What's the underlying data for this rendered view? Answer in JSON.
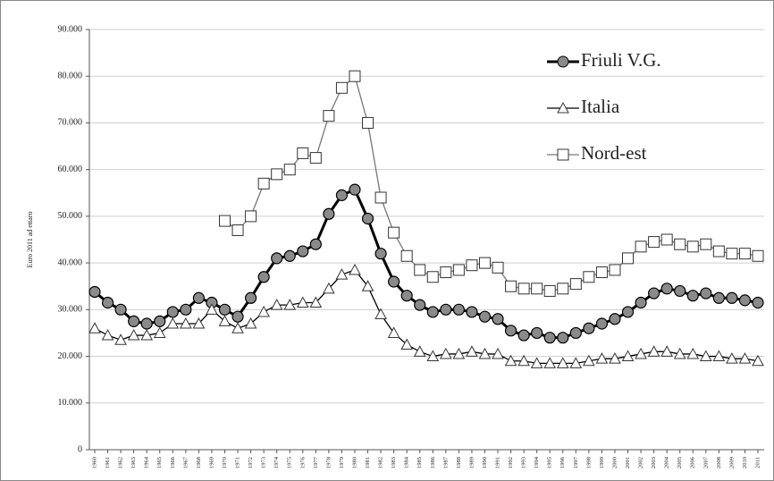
{
  "chart_data": {
    "type": "line",
    "y_label": "Euro 2011 ad ettaro",
    "categories": [
      "1960",
      "1961",
      "1962",
      "1963",
      "1964",
      "1965",
      "1966",
      "1967",
      "1968",
      "1969",
      "1970",
      "1971",
      "1972",
      "1973",
      "1974",
      "1975",
      "1976",
      "1977",
      "1978",
      "1979",
      "1980",
      "1981",
      "1982",
      "1983",
      "1984",
      "1985",
      "1986",
      "1987",
      "1988",
      "1989",
      "1990",
      "1991",
      "1992",
      "1993",
      "1994",
      "1995",
      "1996",
      "1997",
      "1998",
      "1999",
      "2000",
      "2001",
      "2002",
      "2003",
      "2004",
      "2005",
      "2006",
      "2007",
      "2008",
      "2009",
      "2010",
      "2011"
    ],
    "ylim": [
      0,
      90000
    ],
    "yticks": [
      0,
      {
        "value": 10000,
        "label": "10.000"
      },
      {
        "value": 20000,
        "label": "20.000"
      },
      {
        "value": 30000,
        "label": "30.000"
      },
      {
        "value": 40000,
        "label": "40.000"
      },
      {
        "value": 50000,
        "label": "50.000"
      },
      {
        "value": 60000,
        "label": "60.000"
      },
      {
        "value": 70000,
        "label": "70.000"
      },
      {
        "value": 80000,
        "label": "80.000"
      },
      {
        "value": 90000,
        "label": "90.000"
      }
    ],
    "grid": true,
    "legend": "upper right",
    "series": [
      {
        "name": "Friuli V.G.",
        "color": "#000000",
        "marker": "circle",
        "values": [
          33800,
          31500,
          30000,
          27500,
          27000,
          27500,
          29500,
          30000,
          32500,
          31500,
          30000,
          28500,
          32500,
          37000,
          41000,
          41500,
          42500,
          44000,
          50500,
          54500,
          55700,
          49500,
          42000,
          36000,
          33000,
          31000,
          29500,
          30000,
          30000,
          29500,
          28500,
          28000,
          25500,
          24500,
          25000,
          24000,
          24000,
          25000,
          26000,
          27000,
          28000,
          29500,
          31500,
          33500,
          34500,
          34000,
          33000,
          33500,
          32500,
          32500,
          32000,
          31500
        ]
      },
      {
        "name": "Italia",
        "color": "#000000",
        "marker": "triangle",
        "values": [
          26000,
          24500,
          23500,
          24500,
          24500,
          25000,
          27000,
          27000,
          27000,
          30000,
          27500,
          26000,
          27000,
          29500,
          31000,
          31000,
          31500,
          31500,
          34500,
          37500,
          38500,
          35000,
          29000,
          25000,
          22500,
          21000,
          20000,
          20500,
          20500,
          21000,
          20500,
          20500,
          19000,
          19000,
          18500,
          18500,
          18500,
          18500,
          19000,
          19500,
          19500,
          20000,
          20500,
          21000,
          21000,
          20500,
          20500,
          20000,
          20000,
          19500,
          19500,
          19000
        ]
      },
      {
        "name": "Nord-est",
        "color": "#777777",
        "marker": "square",
        "values": [
          null,
          null,
          null,
          null,
          null,
          null,
          null,
          null,
          null,
          null,
          49000,
          47000,
          50000,
          57000,
          59000,
          60000,
          63500,
          62500,
          71500,
          77500,
          80000,
          70000,
          54000,
          46500,
          41500,
          38500,
          37000,
          38000,
          38500,
          39500,
          40000,
          39000,
          35000,
          34500,
          34500,
          34000,
          34500,
          35500,
          37000,
          38000,
          38500,
          41000,
          43500,
          44500,
          45000,
          44000,
          43500,
          44000,
          42500,
          42000,
          42000,
          41500
        ]
      }
    ]
  }
}
